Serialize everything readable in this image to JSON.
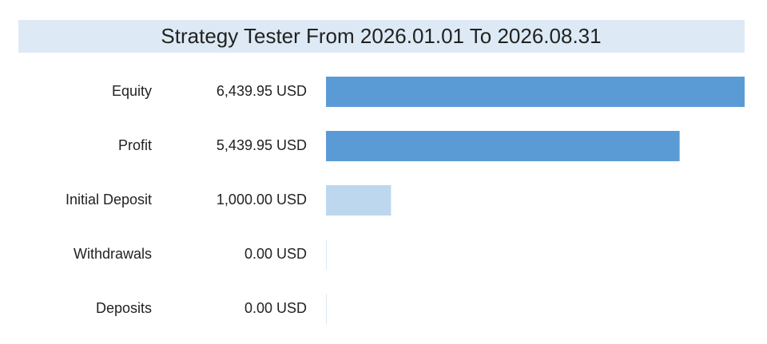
{
  "chart_data": {
    "type": "hbar",
    "title": "Strategy Tester From 2026.01.01 To 2026.08.31",
    "categories": [
      "Equity",
      "Profit",
      "Initial Deposit",
      "Withdrawals",
      "Deposits"
    ],
    "values": [
      6439.95,
      5439.95,
      1000.0,
      0.0,
      0.0
    ],
    "value_labels": [
      "6,439.95 USD",
      "5,439.95 USD",
      "1,000.00 USD",
      "0.00 USD",
      "0.00 USD"
    ],
    "colors": [
      "#5b9bd5",
      "#5b9bd5",
      "#bdd7ee",
      "#dbe8f4",
      "#dbe8f4"
    ],
    "title_background": "#ddeaf5"
  }
}
